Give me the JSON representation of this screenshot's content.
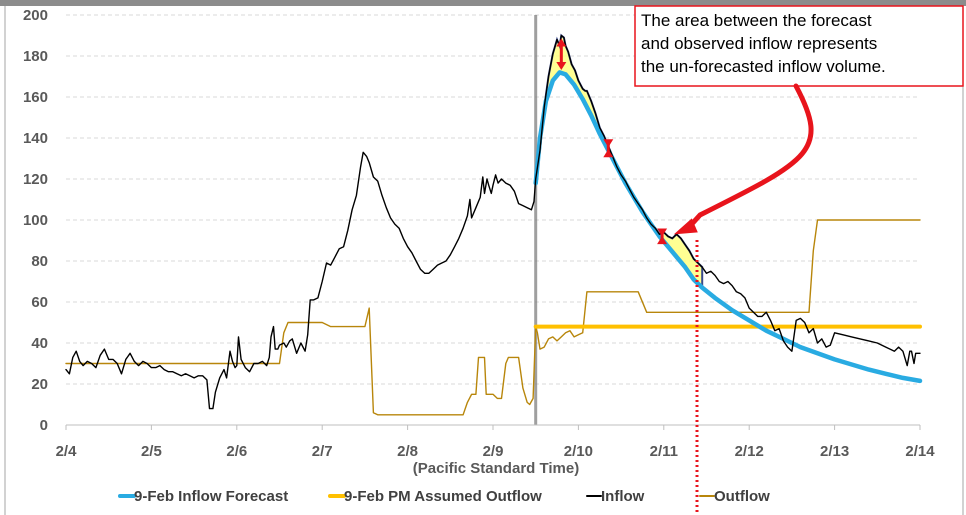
{
  "chart_data": {
    "type": "line",
    "title": "",
    "xlabel": "(Pacific Standard Time)",
    "ylabel": "",
    "ylim": [
      0,
      200
    ],
    "yticks": [
      0,
      20,
      40,
      60,
      80,
      100,
      120,
      140,
      160,
      180,
      200
    ],
    "xlim": [
      "2/4",
      "2/14"
    ],
    "xticks": [
      "2/4",
      "2/5",
      "2/6",
      "2/7",
      "2/8",
      "2/9",
      "2/10",
      "2/11",
      "2/12",
      "2/13",
      "2/14"
    ],
    "grid": "horizontal",
    "legend_position": "bottom",
    "colors": {
      "forecast": "#29ABE2",
      "assumed_outflow": "#FFC000",
      "inflow": "#000000",
      "outflow": "#B8860B",
      "shading": "#FFFF80",
      "arrows": "#E8141C",
      "annotation_border": "#E8141C",
      "forecast_marker": "#7F7F7F"
    },
    "forecast_issue_day": 5.5,
    "series": [
      {
        "name": "9-Feb Inflow Forecast",
        "style": "thick",
        "points": [
          [
            5.5,
            118
          ],
          [
            5.55,
            140
          ],
          [
            5.62,
            158
          ],
          [
            5.7,
            168
          ],
          [
            5.78,
            172
          ],
          [
            5.85,
            171
          ],
          [
            5.95,
            166
          ],
          [
            6.05,
            159
          ],
          [
            6.15,
            151
          ],
          [
            6.25,
            142
          ],
          [
            6.35,
            134
          ],
          [
            6.45,
            126
          ],
          [
            6.55,
            118
          ],
          [
            6.65,
            111
          ],
          [
            6.75,
            104
          ],
          [
            6.85,
            98
          ],
          [
            6.95,
            92
          ],
          [
            7.05,
            87
          ],
          [
            7.15,
            82
          ],
          [
            7.25,
            77
          ],
          [
            7.35,
            71
          ],
          [
            7.45,
            67
          ],
          [
            7.6,
            62
          ],
          [
            7.8,
            56
          ],
          [
            8.0,
            51
          ],
          [
            8.2,
            46
          ],
          [
            8.4,
            42
          ],
          [
            8.6,
            38
          ],
          [
            8.8,
            35
          ],
          [
            9.0,
            32
          ],
          [
            9.2,
            29.5
          ],
          [
            9.4,
            27
          ],
          [
            9.6,
            25
          ],
          [
            9.8,
            23
          ],
          [
            10.0,
            21.5
          ]
        ]
      },
      {
        "name": "9-Feb PM Assumed Outflow",
        "style": "thick",
        "points": [
          [
            5.5,
            48
          ],
          [
            10.0,
            48
          ]
        ]
      },
      {
        "name": "Inflow",
        "style": "thin",
        "points": [
          [
            0.0,
            27
          ],
          [
            0.04,
            25
          ],
          [
            0.08,
            33
          ],
          [
            0.12,
            36
          ],
          [
            0.16,
            31
          ],
          [
            0.2,
            29
          ],
          [
            0.25,
            31
          ],
          [
            0.3,
            30
          ],
          [
            0.35,
            28
          ],
          [
            0.4,
            34
          ],
          [
            0.45,
            37
          ],
          [
            0.5,
            32
          ],
          [
            0.55,
            32
          ],
          [
            0.6,
            30
          ],
          [
            0.65,
            25
          ],
          [
            0.7,
            32
          ],
          [
            0.75,
            35
          ],
          [
            0.8,
            31
          ],
          [
            0.85,
            29
          ],
          [
            0.9,
            31
          ],
          [
            0.95,
            30
          ],
          [
            1.0,
            28
          ],
          [
            1.05,
            28
          ],
          [
            1.1,
            29
          ],
          [
            1.15,
            27
          ],
          [
            1.2,
            26
          ],
          [
            1.25,
            26
          ],
          [
            1.3,
            25
          ],
          [
            1.35,
            24
          ],
          [
            1.4,
            25
          ],
          [
            1.45,
            24
          ],
          [
            1.5,
            23
          ],
          [
            1.55,
            24
          ],
          [
            1.6,
            24
          ],
          [
            1.65,
            22
          ],
          [
            1.68,
            8
          ],
          [
            1.72,
            8
          ],
          [
            1.75,
            16
          ],
          [
            1.8,
            23
          ],
          [
            1.85,
            27
          ],
          [
            1.88,
            23
          ],
          [
            1.92,
            36
          ],
          [
            1.95,
            31
          ],
          [
            1.98,
            28
          ],
          [
            2.0,
            29
          ],
          [
            2.02,
            43
          ],
          [
            2.05,
            32
          ],
          [
            2.1,
            28
          ],
          [
            2.15,
            26
          ],
          [
            2.2,
            30
          ],
          [
            2.25,
            30
          ],
          [
            2.3,
            31
          ],
          [
            2.35,
            29
          ],
          [
            2.38,
            33
          ],
          [
            2.4,
            43
          ],
          [
            2.43,
            48
          ],
          [
            2.45,
            37
          ],
          [
            2.48,
            37
          ],
          [
            2.5,
            39
          ],
          [
            2.55,
            40
          ],
          [
            2.58,
            38
          ],
          [
            2.62,
            41
          ],
          [
            2.65,
            42
          ],
          [
            2.7,
            35
          ],
          [
            2.75,
            40
          ],
          [
            2.8,
            36
          ],
          [
            2.83,
            44
          ],
          [
            2.86,
            61
          ],
          [
            2.9,
            61
          ],
          [
            2.95,
            62
          ],
          [
            3.0,
            70
          ],
          [
            3.05,
            79
          ],
          [
            3.1,
            78
          ],
          [
            3.15,
            82
          ],
          [
            3.2,
            86
          ],
          [
            3.25,
            87
          ],
          [
            3.3,
            95
          ],
          [
            3.35,
            105
          ],
          [
            3.4,
            112
          ],
          [
            3.45,
            126
          ],
          [
            3.48,
            133
          ],
          [
            3.52,
            131
          ],
          [
            3.55,
            128
          ],
          [
            3.6,
            121
          ],
          [
            3.65,
            119
          ],
          [
            3.7,
            112
          ],
          [
            3.75,
            106
          ],
          [
            3.8,
            101
          ],
          [
            3.85,
            98
          ],
          [
            3.9,
            96
          ],
          [
            3.95,
            91
          ],
          [
            4.0,
            87
          ],
          [
            4.05,
            84
          ],
          [
            4.1,
            80
          ],
          [
            4.15,
            76
          ],
          [
            4.2,
            74
          ],
          [
            4.25,
            74
          ],
          [
            4.3,
            76
          ],
          [
            4.35,
            78
          ],
          [
            4.4,
            79
          ],
          [
            4.45,
            80
          ],
          [
            4.5,
            83
          ],
          [
            4.55,
            87
          ],
          [
            4.6,
            91
          ],
          [
            4.65,
            96
          ],
          [
            4.7,
            102
          ],
          [
            4.73,
            110
          ],
          [
            4.75,
            101
          ],
          [
            4.8,
            106
          ],
          [
            4.85,
            111
          ],
          [
            4.88,
            121
          ],
          [
            4.9,
            113
          ],
          [
            4.93,
            120
          ],
          [
            4.95,
            117
          ],
          [
            4.98,
            113
          ],
          [
            5.0,
            117
          ],
          [
            5.03,
            122
          ],
          [
            5.06,
            118
          ],
          [
            5.1,
            120
          ],
          [
            5.15,
            118
          ],
          [
            5.2,
            117
          ],
          [
            5.25,
            114
          ],
          [
            5.3,
            108
          ],
          [
            5.35,
            107
          ],
          [
            5.4,
            106
          ],
          [
            5.45,
            105
          ],
          [
            5.48,
            109
          ],
          [
            5.5,
            120
          ],
          [
            5.55,
            134
          ],
          [
            5.6,
            155
          ],
          [
            5.65,
            170
          ],
          [
            5.7,
            181
          ],
          [
            5.75,
            188
          ],
          [
            5.78,
            185
          ],
          [
            5.8,
            190
          ],
          [
            5.83,
            189
          ],
          [
            5.85,
            185
          ],
          [
            5.88,
            182
          ],
          [
            5.92,
            176
          ],
          [
            5.96,
            173
          ],
          [
            6.0,
            168
          ],
          [
            6.05,
            164
          ],
          [
            6.08,
            163
          ],
          [
            6.1,
            163
          ],
          [
            6.15,
            158
          ],
          [
            6.2,
            152
          ],
          [
            6.25,
            145
          ],
          [
            6.3,
            141
          ],
          [
            6.35,
            136
          ],
          [
            6.4,
            131
          ],
          [
            6.45,
            126
          ],
          [
            6.5,
            122
          ],
          [
            6.55,
            119
          ],
          [
            6.6,
            115
          ],
          [
            6.65,
            111
          ],
          [
            6.7,
            108
          ],
          [
            6.75,
            105
          ],
          [
            6.8,
            101
          ],
          [
            6.85,
            98
          ],
          [
            6.9,
            96
          ],
          [
            6.95,
            93
          ],
          [
            7.0,
            94
          ],
          [
            7.05,
            92
          ],
          [
            7.1,
            91
          ],
          [
            7.15,
            93
          ],
          [
            7.2,
            91
          ],
          [
            7.25,
            88
          ],
          [
            7.3,
            85
          ],
          [
            7.35,
            81
          ],
          [
            7.4,
            79
          ],
          [
            7.45,
            77
          ],
          [
            7.5,
            74
          ],
          [
            7.55,
            75
          ],
          [
            7.6,
            73
          ],
          [
            7.65,
            70
          ],
          [
            7.7,
            69
          ],
          [
            7.75,
            70
          ],
          [
            7.8,
            68
          ],
          [
            7.85,
            65
          ],
          [
            7.9,
            64
          ],
          [
            7.95,
            62
          ],
          [
            8.0,
            57
          ],
          [
            8.05,
            55
          ],
          [
            8.1,
            53
          ],
          [
            8.15,
            53
          ],
          [
            8.2,
            55
          ],
          [
            8.25,
            51
          ],
          [
            8.3,
            46
          ],
          [
            8.35,
            47
          ],
          [
            8.4,
            41
          ],
          [
            8.45,
            38
          ],
          [
            8.5,
            36
          ],
          [
            8.55,
            51
          ],
          [
            8.6,
            52
          ],
          [
            8.65,
            50
          ],
          [
            8.7,
            45
          ],
          [
            8.75,
            47
          ],
          [
            8.8,
            40
          ],
          [
            8.85,
            42
          ],
          [
            8.9,
            38
          ],
          [
            8.95,
            39
          ],
          [
            9.0,
            45
          ],
          [
            9.1,
            44
          ],
          [
            9.2,
            43
          ],
          [
            9.3,
            42
          ],
          [
            9.4,
            41
          ],
          [
            9.5,
            40
          ],
          [
            9.6,
            38
          ],
          [
            9.7,
            36
          ],
          [
            9.75,
            38
          ],
          [
            9.8,
            36
          ],
          [
            9.85,
            29
          ],
          [
            9.88,
            36
          ],
          [
            9.9,
            36
          ],
          [
            9.93,
            30
          ],
          [
            9.95,
            35
          ],
          [
            10.0,
            35
          ]
        ]
      },
      {
        "name": "Outflow",
        "style": "thin",
        "points": [
          [
            0.0,
            30
          ],
          [
            0.5,
            30
          ],
          [
            1.0,
            30
          ],
          [
            1.5,
            30
          ],
          [
            2.0,
            30
          ],
          [
            2.5,
            30
          ],
          [
            2.55,
            45
          ],
          [
            2.6,
            50
          ],
          [
            3.0,
            50
          ],
          [
            3.1,
            48
          ],
          [
            3.5,
            48
          ],
          [
            3.55,
            57
          ],
          [
            3.6,
            6
          ],
          [
            3.65,
            5
          ],
          [
            3.8,
            5
          ],
          [
            4.0,
            5
          ],
          [
            4.5,
            5
          ],
          [
            4.65,
            5
          ],
          [
            4.7,
            11
          ],
          [
            4.75,
            15
          ],
          [
            4.8,
            15
          ],
          [
            4.83,
            33
          ],
          [
            4.9,
            33
          ],
          [
            4.92,
            15
          ],
          [
            5.0,
            15
          ],
          [
            5.05,
            13
          ],
          [
            5.1,
            13
          ],
          [
            5.15,
            30
          ],
          [
            5.18,
            33
          ],
          [
            5.3,
            33
          ],
          [
            5.35,
            18
          ],
          [
            5.4,
            11
          ],
          [
            5.43,
            10
          ],
          [
            5.47,
            13
          ],
          [
            5.5,
            48
          ],
          [
            5.52,
            45
          ],
          [
            5.55,
            37
          ],
          [
            5.6,
            38
          ],
          [
            5.65,
            42
          ],
          [
            5.7,
            43
          ],
          [
            5.75,
            41
          ],
          [
            5.8,
            43
          ],
          [
            5.85,
            45
          ],
          [
            5.9,
            46
          ],
          [
            5.95,
            43
          ],
          [
            6.0,
            44
          ],
          [
            6.05,
            45
          ],
          [
            6.1,
            65
          ],
          [
            6.4,
            65
          ],
          [
            6.5,
            65
          ],
          [
            6.7,
            65
          ],
          [
            6.8,
            55
          ],
          [
            7.0,
            55
          ],
          [
            7.5,
            55
          ],
          [
            8.0,
            55
          ],
          [
            8.5,
            55
          ],
          [
            8.7,
            55
          ],
          [
            8.75,
            85
          ],
          [
            8.8,
            100
          ],
          [
            9.0,
            100
          ],
          [
            9.5,
            100
          ],
          [
            10.0,
            100
          ]
        ]
      }
    ],
    "annotations": [
      {
        "text": "The area between the forecast and observed inflow represents the un-forecasted inflow volume.",
        "lines": [
          "The area between the forecast",
          "and observed inflow represents",
          "the un-forecasted inflow volume."
        ]
      }
    ]
  }
}
